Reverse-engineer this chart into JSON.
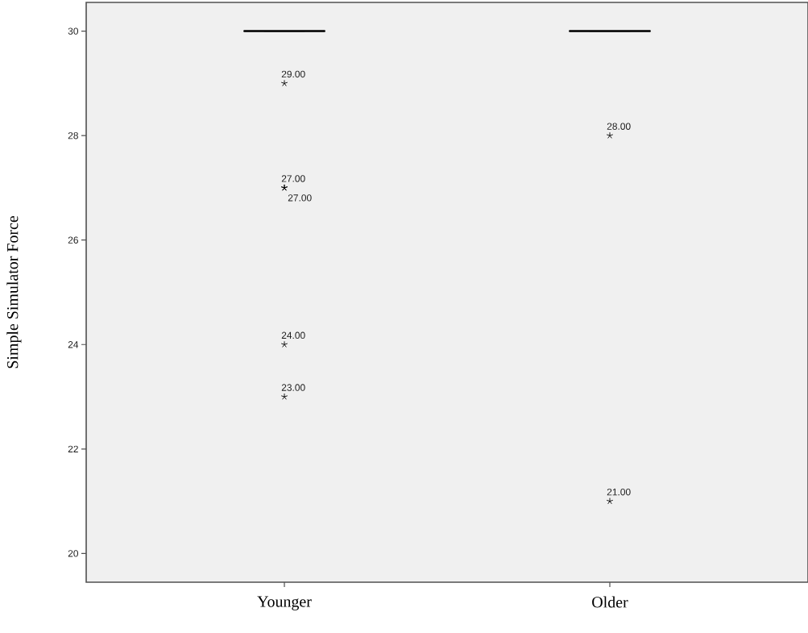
{
  "chart_data": {
    "type": "box",
    "ylabel": "Simple Simulator Force",
    "categories": [
      "Younger",
      "Older"
    ],
    "boxes": [
      {
        "low": 30,
        "q1": 30,
        "median": 30,
        "q3": 30,
        "high": 30,
        "outliers": [
          29,
          27,
          27,
          24,
          23
        ]
      },
      {
        "low": 30,
        "q1": 30,
        "median": 30,
        "q3": 30,
        "high": 30,
        "outliers": [
          28,
          21
        ]
      }
    ],
    "color": "#000000",
    "marker": "star",
    "ylim": [
      19.45,
      30.55
    ],
    "yticks": [
      20,
      22,
      24,
      26,
      28,
      30
    ],
    "annotations": [
      "29.00",
      "27.00",
      "27.00",
      "24.00",
      "23.00",
      "28.00",
      "21.00"
    ]
  }
}
